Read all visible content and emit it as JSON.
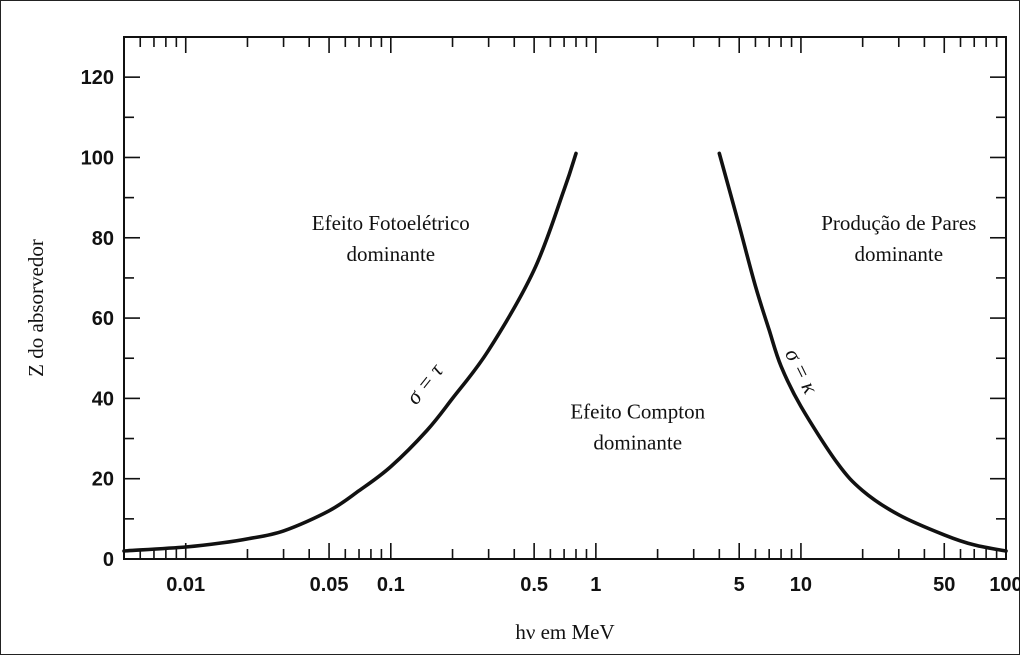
{
  "chart_data": {
    "type": "line",
    "title": "",
    "xlabel": "hν em MeV",
    "ylabel": "Z do absorvedor",
    "x_scale": "log",
    "xlim": [
      0.005,
      100
    ],
    "ylim": [
      0,
      130
    ],
    "grid": false,
    "x_tick_labels": [
      {
        "value": 0.01,
        "label": "0.01"
      },
      {
        "value": 0.05,
        "label": "0.05"
      },
      {
        "value": 0.1,
        "label": "0.1"
      },
      {
        "value": 0.5,
        "label": "0.5"
      },
      {
        "value": 1,
        "label": "1"
      },
      {
        "value": 5,
        "label": "5"
      },
      {
        "value": 10,
        "label": "10"
      },
      {
        "value": 50,
        "label": "50"
      },
      {
        "value": 100,
        "label": "100"
      }
    ],
    "y_tick_labels": [
      {
        "value": 0,
        "label": "0"
      },
      {
        "value": 20,
        "label": "20"
      },
      {
        "value": 40,
        "label": "40"
      },
      {
        "value": 60,
        "label": "60"
      },
      {
        "value": 80,
        "label": "80"
      },
      {
        "value": 100,
        "label": "100"
      },
      {
        "value": 120,
        "label": "120"
      }
    ],
    "series": [
      {
        "name": "σ = τ",
        "x": [
          0.005,
          0.01,
          0.015,
          0.02,
          0.03,
          0.05,
          0.07,
          0.1,
          0.15,
          0.2,
          0.3,
          0.5,
          0.7,
          0.8
        ],
        "y": [
          2,
          3,
          4,
          5,
          7,
          12,
          17,
          23,
          32,
          40,
          52,
          72,
          92,
          101
        ]
      },
      {
        "name": "σ = κ",
        "x": [
          4,
          5,
          6,
          7,
          8,
          10,
          15,
          20,
          30,
          50,
          70,
          100
        ],
        "y": [
          101,
          83,
          68,
          57,
          48,
          38,
          24,
          17,
          11,
          6,
          3.5,
          2
        ]
      }
    ],
    "annotations": [
      {
        "lines": [
          "Efeito Fotoelétrico",
          "dominante"
        ],
        "x": 0.1,
        "y": 80
      },
      {
        "lines": [
          "Efeito Compton",
          "dominante"
        ],
        "x": 1.6,
        "y": 33
      },
      {
        "lines": [
          "Produção de Pares",
          "dominante"
        ],
        "x": 30,
        "y": 80
      }
    ]
  }
}
